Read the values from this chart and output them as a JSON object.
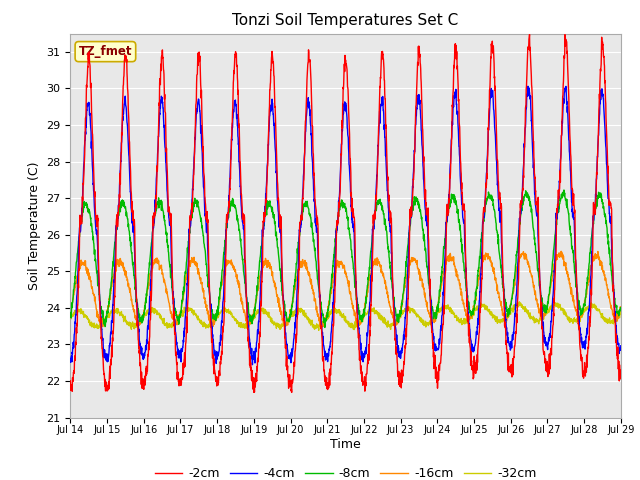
{
  "title": "Tonzi Soil Temperatures Set C",
  "xlabel": "Time",
  "ylabel": "Soil Temperature (C)",
  "ylim": [
    21.0,
    31.5
  ],
  "yticks": [
    21.0,
    22.0,
    23.0,
    24.0,
    25.0,
    26.0,
    27.0,
    28.0,
    29.0,
    30.0,
    31.0
  ],
  "xtick_labels": [
    "Jul 14",
    "Jul 15",
    "Jul 16",
    "Jul 17",
    "Jul 18",
    "Jul 19",
    "Jul 20",
    "Jul 21",
    "Jul 22",
    "Jul 23",
    "Jul 24",
    "Jul 25",
    "Jul 26",
    "Jul 27",
    "Jul 28",
    "Jul 29"
  ],
  "series_colors": [
    "#ff0000",
    "#0000ff",
    "#00bb00",
    "#ff8800",
    "#cccc00"
  ],
  "series_labels": [
    "-2cm",
    "-4cm",
    "-8cm",
    "-16cm",
    "-32cm"
  ],
  "legend_label": "TZ_fmet",
  "plot_bg_color": "#e8e8e8",
  "fig_bg_color": "#ffffff",
  "line_width": 1.0,
  "n_days": 15,
  "n_ppd": 144,
  "mean_2cm": 26.5,
  "amp_2cm": 4.5,
  "mean_4cm": 26.2,
  "amp_4cm": 3.5,
  "mean_8cm": 25.4,
  "amp_8cm": 1.6,
  "mean_16cm": 24.5,
  "amp_16cm": 0.85,
  "mean_32cm": 23.75,
  "amp_32cm": 0.22,
  "phase_4cm": 0.1,
  "phase_8cm": 0.45,
  "phase_16cm": 0.9,
  "phase_32cm": 1.8
}
